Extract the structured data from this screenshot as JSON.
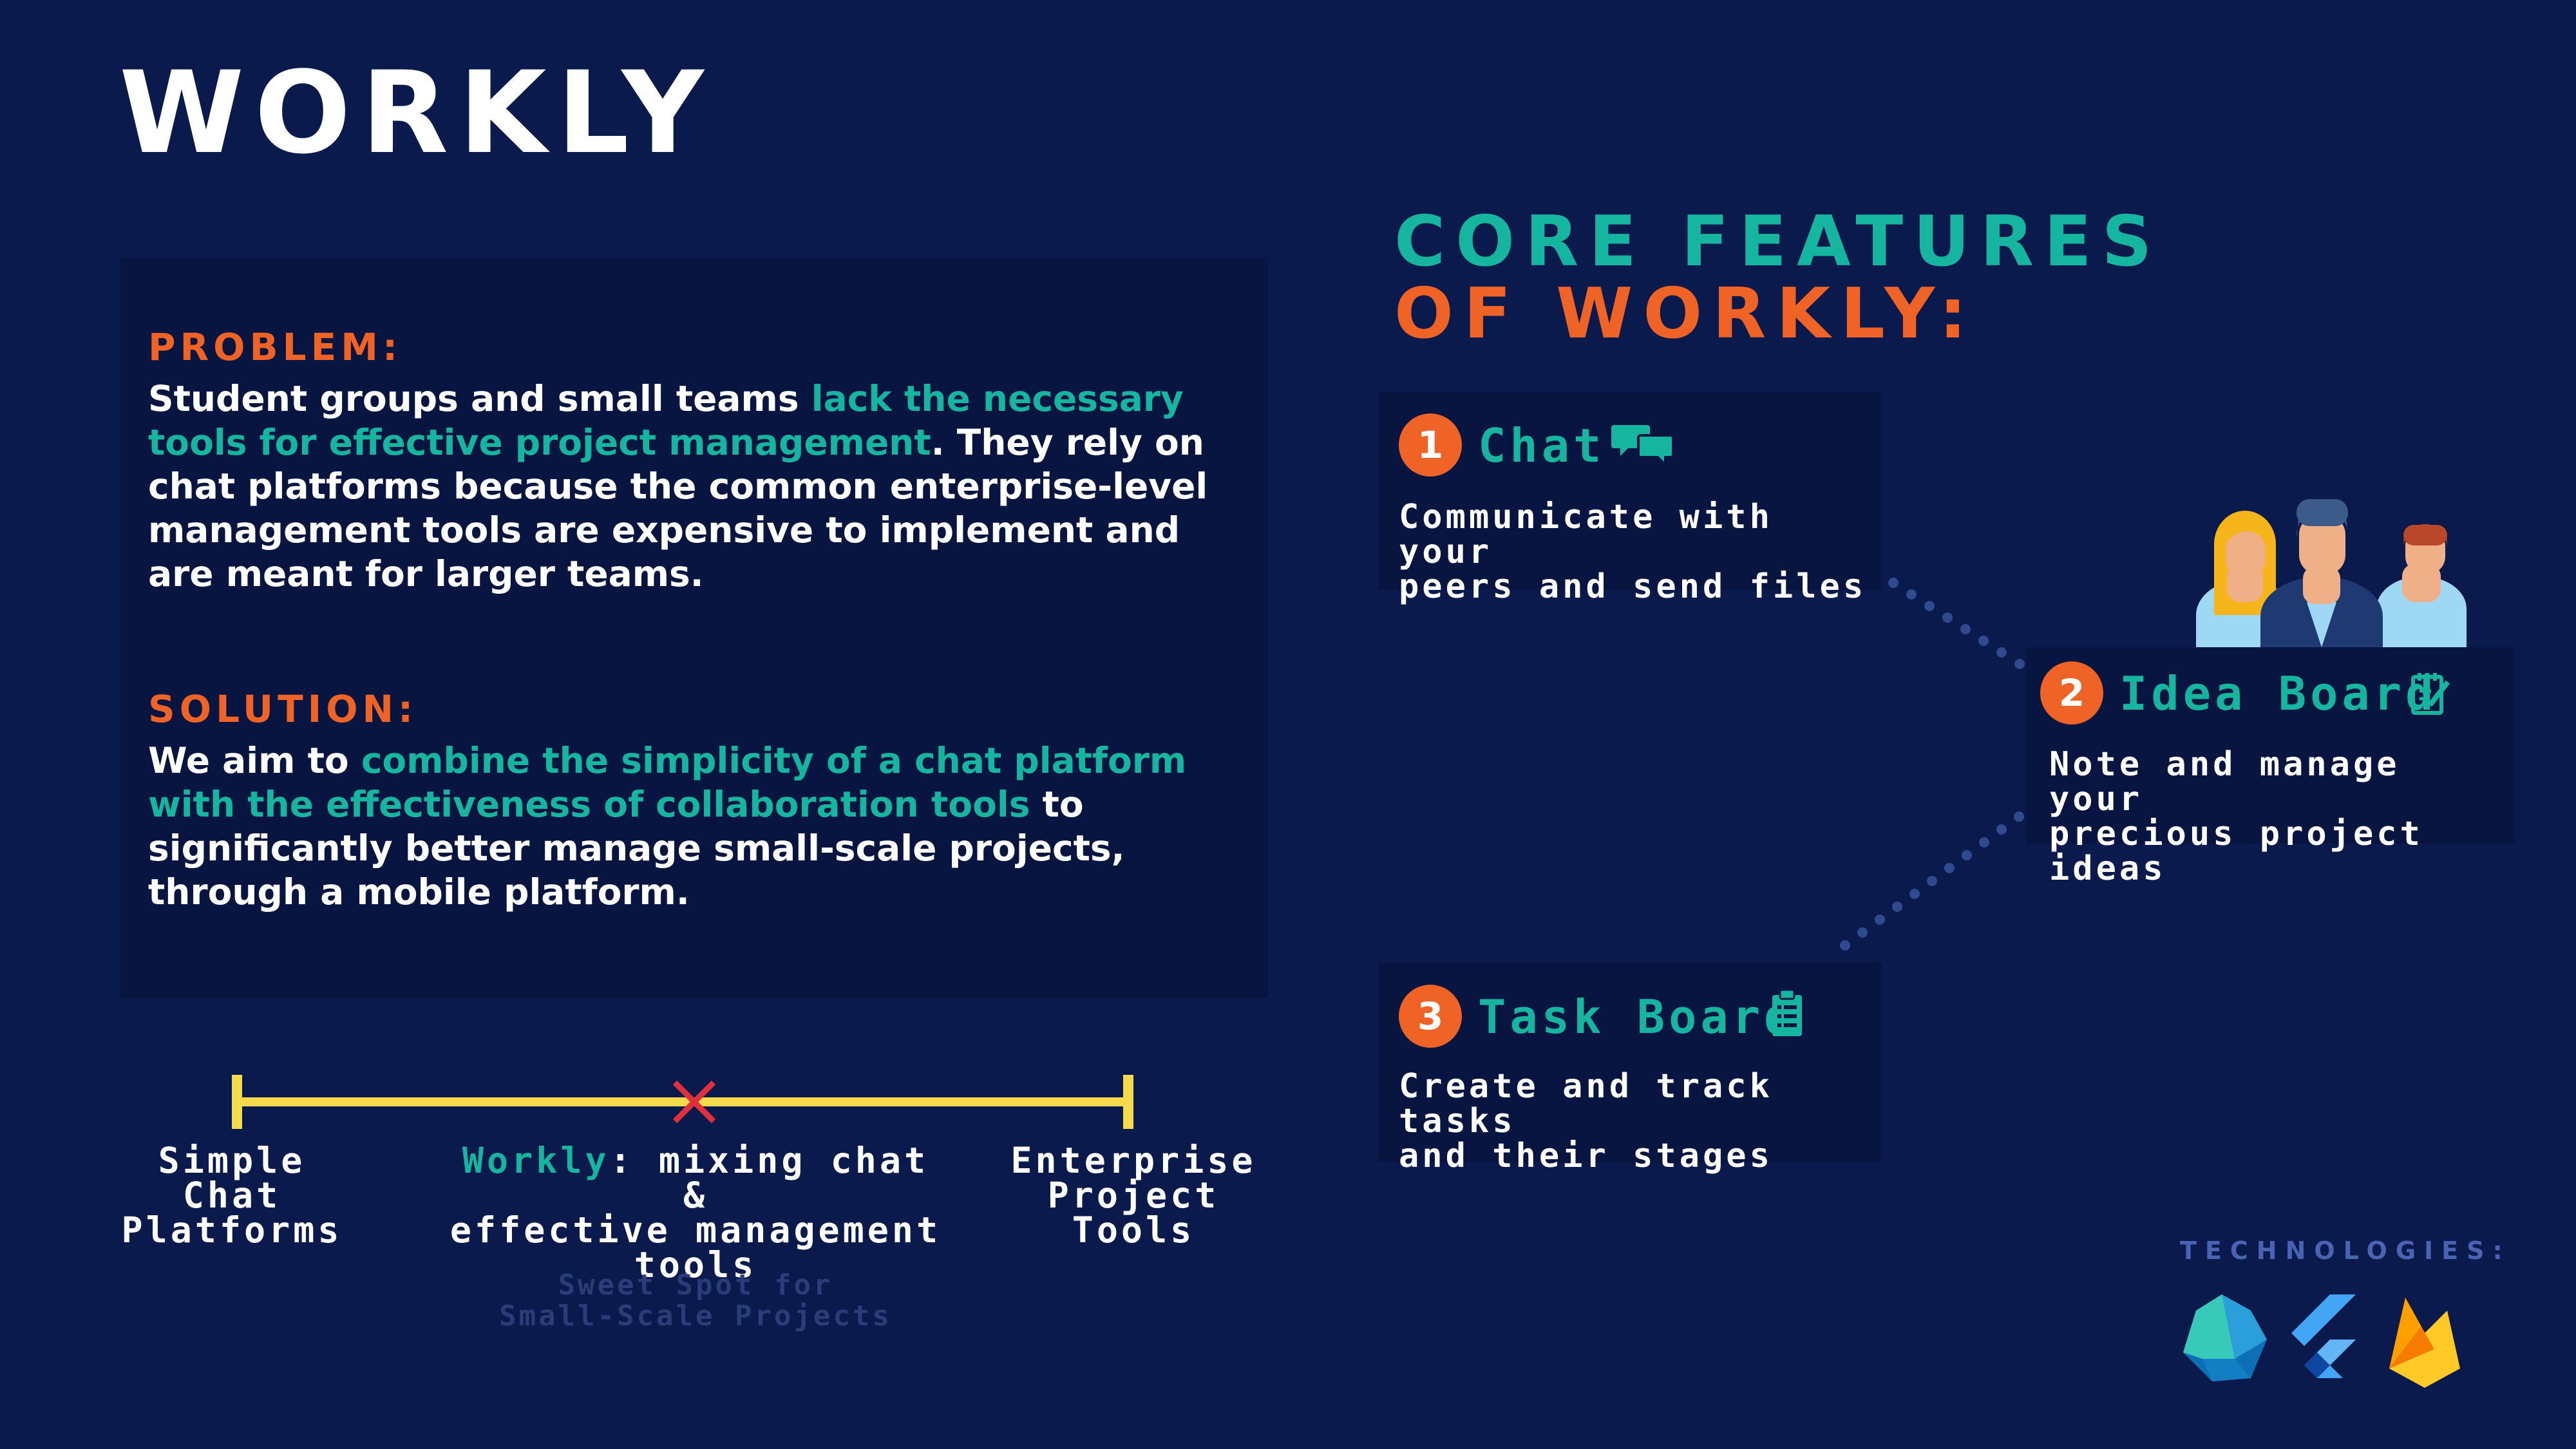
{
  "title": "WORKLY",
  "problem": {
    "heading": "PROBLEM:",
    "text_before": "Student groups and small teams ",
    "text_highlight": "lack the necessary tools for effective project management",
    "text_after": ". They rely on chat platforms because the common enterprise-level management tools are expensive to implement and are meant for larger teams."
  },
  "solution": {
    "heading": "SOLUTION:",
    "text_before": "We aim to ",
    "text_highlight": "combine the simplicity of a chat platform with the effectiveness of collaboration tools",
    "text_after": " to significantly better manage small-scale projects, through a mobile platform."
  },
  "scale": {
    "left_label": "Simple\nChat\nPlatforms",
    "middle_highlight": "Workly",
    "middle_label": ": mixing chat &\neffective management\ntools",
    "right_label": "Enterprise\nProject\nTools",
    "sweet_spot": "Sweet Spot for\nSmall-Scale Projects"
  },
  "core": {
    "line1": "CORE FEATURES",
    "line2": "OF WORKLY:"
  },
  "features": [
    {
      "number": "1",
      "title": "Chat",
      "icon": "chat-bubbles-icon",
      "description": "Communicate with your\npeers and send files"
    },
    {
      "number": "2",
      "title": "Idea Board",
      "icon": "notepad-pencil-icon",
      "description": "Note and manage your\nprecious project ideas"
    },
    {
      "number": "3",
      "title": "Task Board",
      "icon": "clipboard-list-icon",
      "description": "Create and track tasks\nand their stages"
    }
  ],
  "technologies": {
    "label": "TECHNOLOGIES:",
    "logos": [
      "dart-icon",
      "flutter-icon",
      "firebase-icon"
    ]
  },
  "colors": {
    "background": "#0b1a4c",
    "panel": "#071540",
    "teal": "#16b5a0",
    "orange": "#ef6426",
    "yellow": "#f5da4d",
    "red": "#e0303c"
  }
}
